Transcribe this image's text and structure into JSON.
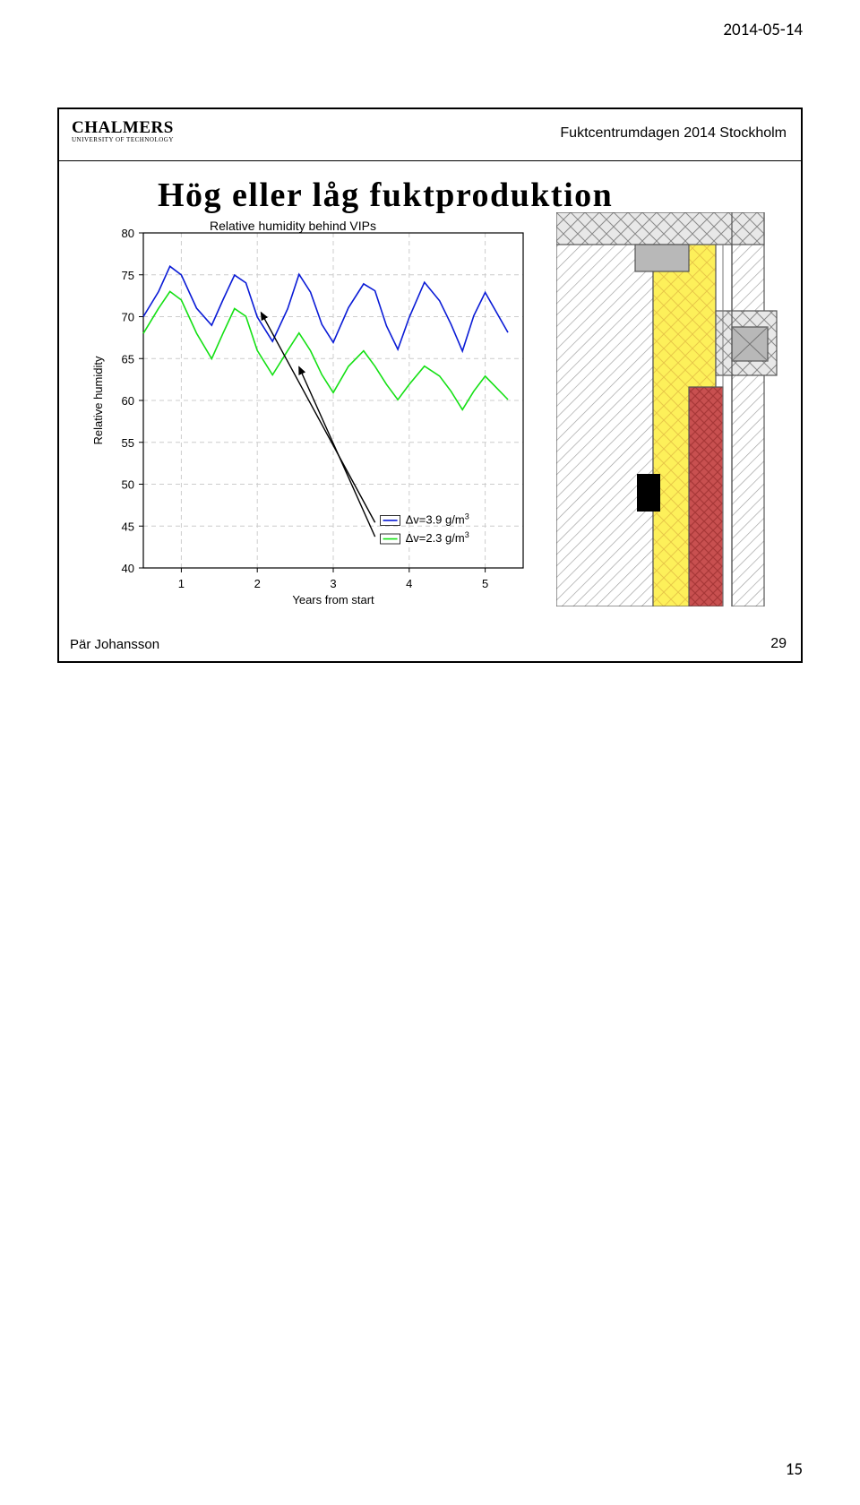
{
  "page": {
    "date": "2014-05-14",
    "number": "15"
  },
  "slide": {
    "logo_main": "CHALMERS",
    "logo_sub": "UNIVERSITY OF TECHNOLOGY",
    "conference": "Fuktcentrumdagen 2014 Stockholm",
    "title": "Hög eller låg fuktproduktion",
    "subtitle": "Relative humidity behind VIPs",
    "footer_author": "Pär Johansson",
    "footer_page": "29"
  },
  "chart": {
    "type": "line",
    "ylabel": "Relative humidity",
    "xlabel": "Years from start",
    "ylim": [
      40,
      80
    ],
    "yticks": [
      40,
      45,
      50,
      55,
      60,
      65,
      70,
      75,
      80
    ],
    "xlim": [
      0.5,
      5.5
    ],
    "xticks": [
      1,
      2,
      3,
      4,
      5
    ],
    "grid_color": "#cccccc",
    "box_color": "#000000",
    "background_color": "#ffffff",
    "series_blue_x": [
      0.5,
      0.7,
      0.85,
      1.0,
      1.2,
      1.4,
      1.55,
      1.7,
      1.85,
      2.0,
      2.2,
      2.4,
      2.55,
      2.7,
      2.85,
      3.0,
      3.2,
      3.4,
      3.55,
      3.7,
      3.85,
      4.0,
      4.2,
      4.4,
      4.55,
      4.7,
      4.85,
      5.0,
      5.3
    ],
    "series_blue_y": [
      70,
      73,
      76,
      75,
      71,
      69,
      72,
      75,
      74,
      70,
      67,
      71,
      75,
      73,
      69,
      67,
      71,
      74,
      73,
      69,
      66,
      70,
      74,
      72,
      69,
      66,
      70,
      73,
      68
    ],
    "series_blue_color": "#0a1bd6",
    "series_green_x": [
      0.5,
      0.7,
      0.85,
      1.0,
      1.2,
      1.4,
      1.55,
      1.7,
      1.85,
      2.0,
      2.2,
      2.4,
      2.55,
      2.7,
      2.85,
      3.0,
      3.2,
      3.4,
      3.55,
      3.7,
      3.85,
      4.0,
      4.2,
      4.4,
      4.55,
      4.7,
      4.85,
      5.0,
      5.3
    ],
    "series_green_y": [
      68,
      71,
      73,
      72,
      68,
      65,
      68,
      71,
      70,
      66,
      63,
      66,
      68,
      66,
      63,
      61,
      64,
      66,
      64,
      62,
      60,
      62,
      64,
      63,
      61,
      59,
      61,
      63,
      60
    ],
    "series_green_color": "#14e014",
    "line_width": 1.6,
    "arrow_color": "#000000",
    "legend": {
      "box_color": "#000000",
      "item1": "Δv=3.9 g/m",
      "item1_sup": "3",
      "item1_color": "#0a1bd6",
      "item2": "Δv=2.3 g/m",
      "item2_sup": "3",
      "item2_color": "#14e014"
    },
    "label_fontsize": 13,
    "tick_fontsize": 13
  },
  "diagram": {
    "bg": "#ffffff",
    "hatch_color": "#9e9e9e",
    "insulation_color": "#fdf05a",
    "insulation_diag_color": "#e8c848",
    "column_color": "#c85050",
    "column_diag_color": "#a83838",
    "panel_color": "#b8b8b8",
    "panel_hatch": "#8a8a8a",
    "beam_fill": "#e8e8e8",
    "black_box": "#000000"
  }
}
